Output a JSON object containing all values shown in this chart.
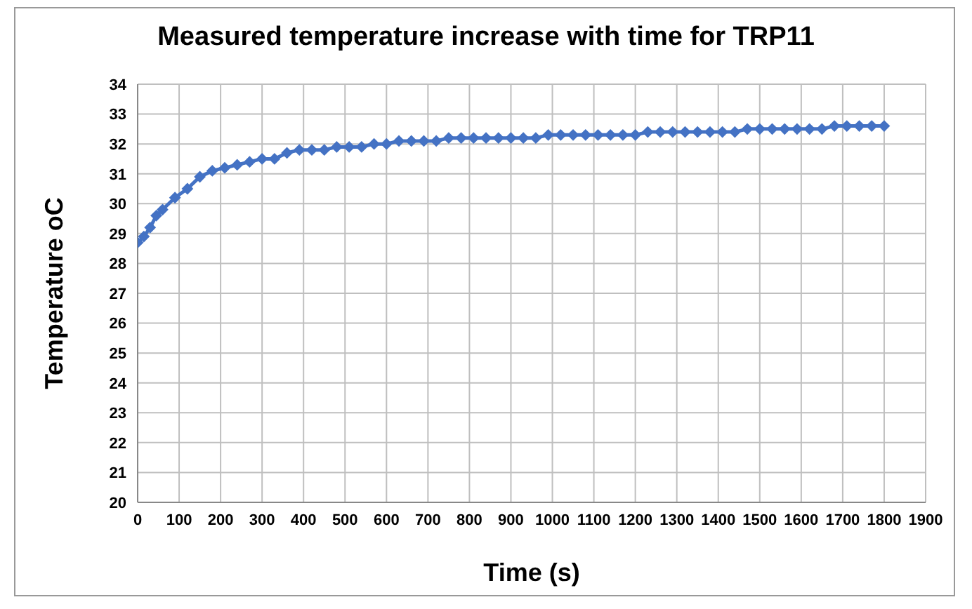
{
  "chart_data": {
    "type": "line",
    "title": "Measured temperature increase with time for TRP11",
    "xlabel": "Time (s)",
    "ylabel": "Temperature oC",
    "x": [
      0,
      15,
      30,
      45,
      60,
      90,
      120,
      150,
      180,
      210,
      240,
      270,
      300,
      330,
      360,
      390,
      420,
      450,
      480,
      510,
      540,
      570,
      600,
      630,
      660,
      690,
      720,
      750,
      780,
      810,
      840,
      870,
      900,
      930,
      960,
      990,
      1020,
      1050,
      1080,
      1110,
      1140,
      1170,
      1200,
      1230,
      1260,
      1290,
      1320,
      1350,
      1380,
      1410,
      1440,
      1470,
      1500,
      1530,
      1560,
      1590,
      1620,
      1650,
      1680,
      1710,
      1740,
      1770,
      1800
    ],
    "series": [
      {
        "color": "#4472c4",
        "values": [
          28.7,
          28.9,
          29.2,
          29.6,
          29.8,
          30.2,
          30.5,
          30.9,
          31.1,
          31.2,
          31.3,
          31.4,
          31.5,
          31.5,
          31.7,
          31.8,
          31.8,
          31.8,
          31.9,
          31.9,
          31.9,
          32.0,
          32.0,
          32.1,
          32.1,
          32.1,
          32.1,
          32.2,
          32.2,
          32.2,
          32.2,
          32.2,
          32.2,
          32.2,
          32.2,
          32.3,
          32.3,
          32.3,
          32.3,
          32.3,
          32.3,
          32.3,
          32.3,
          32.4,
          32.4,
          32.4,
          32.4,
          32.4,
          32.4,
          32.4,
          32.4,
          32.5,
          32.5,
          32.5,
          32.5,
          32.5,
          32.5,
          32.5,
          32.6,
          32.6,
          32.6,
          32.6,
          32.6
        ]
      }
    ],
    "xlim": [
      0,
      1900
    ],
    "xticks": [
      0,
      100,
      200,
      300,
      400,
      500,
      600,
      700,
      800,
      900,
      1000,
      1100,
      1200,
      1300,
      1400,
      1500,
      1600,
      1700,
      1800,
      1900
    ],
    "ylim": [
      20,
      34
    ],
    "yticks": [
      20,
      21,
      22,
      23,
      24,
      25,
      26,
      27,
      28,
      29,
      30,
      31,
      32,
      33,
      34
    ],
    "grid": true,
    "legend": false,
    "marker": "diamond",
    "line_style": "solid"
  }
}
